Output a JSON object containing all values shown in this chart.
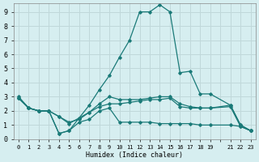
{
  "xlabel": "Humidex (Indice chaleur)",
  "bg_color": "#d6eef0",
  "grid_color": "#c0d8da",
  "line_color": "#1a7a78",
  "xticks": [
    0,
    1,
    2,
    3,
    4,
    5,
    6,
    7,
    8,
    9,
    10,
    11,
    12,
    13,
    14,
    15,
    16,
    17,
    18,
    19,
    20,
    21,
    22,
    23
  ],
  "xtick_labels": [
    "0",
    "1",
    "2",
    "3",
    "4",
    "5",
    "6",
    "7",
    "8",
    "9",
    "10",
    "11",
    "12",
    "13",
    "14",
    "15",
    "16",
    "17",
    "18",
    "19",
    "",
    "21",
    "22",
    "23"
  ],
  "xlim": [
    -0.5,
    23.5
  ],
  "ylim": [
    0,
    9.6
  ],
  "yticks": [
    0,
    1,
    2,
    3,
    4,
    5,
    6,
    7,
    8,
    9
  ],
  "lines": [
    {
      "x": [
        0,
        1,
        2,
        3,
        4,
        5,
        6,
        7,
        8,
        9,
        10,
        11,
        12,
        13,
        14,
        15,
        16,
        17,
        18,
        19,
        21,
        22,
        23
      ],
      "y": [
        3.0,
        2.2,
        2.0,
        2.0,
        0.4,
        0.6,
        1.5,
        2.4,
        3.5,
        4.5,
        5.8,
        7.0,
        9.0,
        9.0,
        9.5,
        9.0,
        4.7,
        4.8,
        3.2,
        3.2,
        2.4,
        1.0,
        0.6
      ]
    },
    {
      "x": [
        0,
        1,
        2,
        3,
        4,
        5,
        6,
        7,
        8,
        9,
        10,
        11,
        12,
        13,
        14,
        15,
        16,
        17,
        18,
        19,
        21,
        22,
        23
      ],
      "y": [
        2.9,
        2.2,
        2.0,
        2.0,
        1.6,
        1.1,
        1.5,
        1.9,
        2.5,
        3.0,
        2.8,
        2.8,
        2.8,
        2.9,
        3.0,
        3.0,
        2.5,
        2.3,
        2.2,
        2.2,
        2.4,
        1.0,
        0.6
      ]
    },
    {
      "x": [
        0,
        1,
        2,
        3,
        4,
        5,
        6,
        7,
        8,
        9,
        10,
        11,
        12,
        13,
        14,
        15,
        16,
        17,
        18,
        19,
        21,
        22,
        23
      ],
      "y": [
        2.9,
        2.2,
        2.0,
        2.0,
        0.4,
        0.6,
        1.2,
        1.4,
        2.0,
        2.2,
        1.2,
        1.2,
        1.2,
        1.2,
        1.1,
        1.1,
        1.1,
        1.1,
        1.0,
        1.0,
        1.0,
        0.9,
        0.6
      ]
    },
    {
      "x": [
        0,
        1,
        2,
        3,
        4,
        5,
        6,
        7,
        8,
        9,
        10,
        11,
        12,
        13,
        14,
        15,
        16,
        17,
        18,
        19,
        21,
        22,
        23
      ],
      "y": [
        2.9,
        2.2,
        2.0,
        2.0,
        1.6,
        1.2,
        1.4,
        1.9,
        2.3,
        2.5,
        2.5,
        2.6,
        2.7,
        2.8,
        2.8,
        2.9,
        2.3,
        2.2,
        2.2,
        2.2,
        2.3,
        0.9,
        0.6
      ]
    }
  ]
}
